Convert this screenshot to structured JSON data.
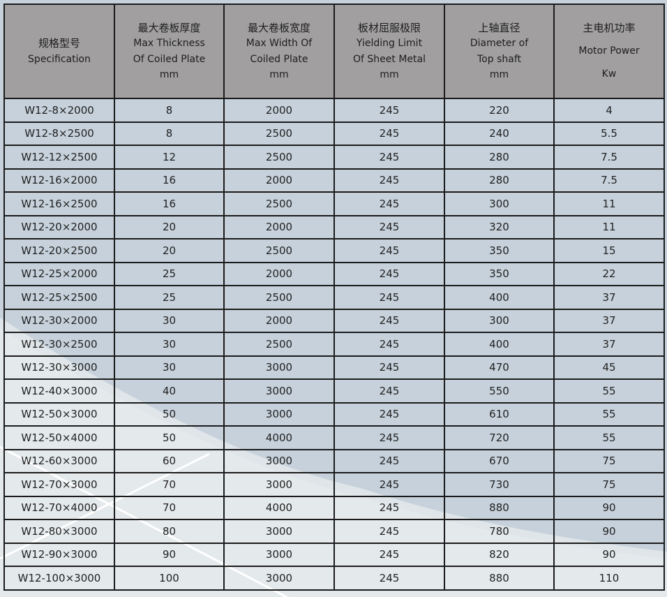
{
  "colors": {
    "header_bg": "#a19f9f",
    "body_bg": "#c6d1db",
    "light_bg": "#e4e9eb",
    "border": "#1b1b1b"
  },
  "headers": [
    {
      "cn": "规格型号",
      "en": [
        "Specification"
      ],
      "unit": ""
    },
    {
      "cn": "最大卷板厚度",
      "en": [
        "Max Thickness",
        "Of Coiled Plate"
      ],
      "unit": "mm"
    },
    {
      "cn": "最大卷板宽度",
      "en": [
        "Max Width  Of",
        "Coiled Plate"
      ],
      "unit": "mm"
    },
    {
      "cn": "板材屈服极限",
      "en": [
        "Yielding Limit",
        "Of  Sheet Metal"
      ],
      "unit": "mm"
    },
    {
      "cn": "上轴直径",
      "en": [
        "Diameter of",
        "Top shaft"
      ],
      "unit": "mm"
    },
    {
      "cn": "主电机功率",
      "en": [
        "Motor Power"
      ],
      "unit": "Kw"
    }
  ],
  "rows": [
    [
      "W12-8×2000",
      "8",
      "2000",
      "245",
      "220",
      "4"
    ],
    [
      "W12-8×2500",
      "8",
      "2500",
      "245",
      "240",
      "5.5"
    ],
    [
      "W12-12×2500",
      "12",
      "2500",
      "245",
      "280",
      "7.5"
    ],
    [
      "W12-16×2000",
      "16",
      "2000",
      "245",
      "280",
      "7.5"
    ],
    [
      "W12-16×2500",
      "16",
      "2500",
      "245",
      "300",
      "11"
    ],
    [
      "W12-20×2000",
      "20",
      "2000",
      "245",
      "320",
      "11"
    ],
    [
      "W12-20×2500",
      "20",
      "2500",
      "245",
      "350",
      "15"
    ],
    [
      "W12-25×2000",
      "25",
      "2000",
      "245",
      "350",
      "22"
    ],
    [
      "W12-25×2500",
      "25",
      "2500",
      "245",
      "400",
      "37"
    ],
    [
      "W12-30×2000",
      "30",
      "2000",
      "245",
      "300",
      "37"
    ],
    [
      "W12-30×2500",
      "30",
      "2500",
      "245",
      "400",
      "37"
    ],
    [
      "W12-30×3000",
      "30",
      "3000",
      "245",
      "470",
      "45"
    ],
    [
      "W12-40×3000",
      "40",
      "3000",
      "245",
      "550",
      "55"
    ],
    [
      "W12-50×3000",
      "50",
      "3000",
      "245",
      "610",
      "55"
    ],
    [
      "W12-50×4000",
      "50",
      "4000",
      "245",
      "720",
      "55"
    ],
    [
      "W12-60×3000",
      "60",
      "3000",
      "245",
      "670",
      "75"
    ],
    [
      "W12-70×3000",
      "70",
      "3000",
      "245",
      "730",
      "75"
    ],
    [
      "W12-70×4000",
      "70",
      "4000",
      "245",
      "880",
      "90"
    ],
    [
      "W12-80×3000",
      "80",
      "3000",
      "245",
      "780",
      "90"
    ],
    [
      "W12-90×3000",
      "90",
      "3000",
      "245",
      "820",
      "90"
    ],
    [
      "W12-100×3000",
      "100",
      "3000",
      "245",
      "880",
      "110"
    ]
  ]
}
